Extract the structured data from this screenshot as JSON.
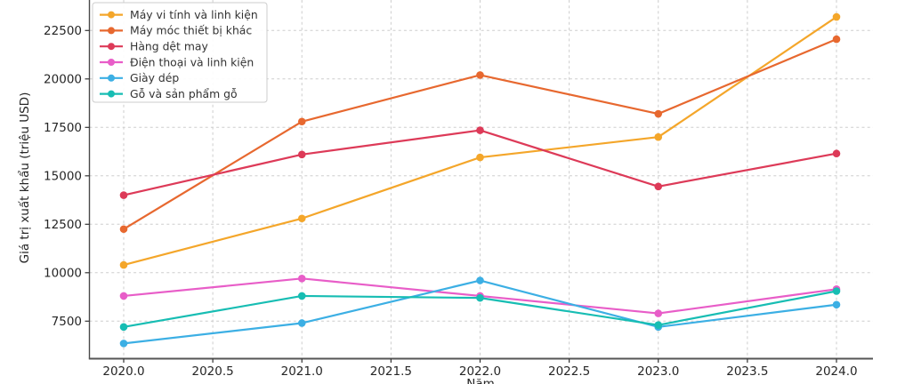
{
  "chart_data": {
    "type": "line",
    "title": "",
    "xlabel": "Năm",
    "ylabel": "Giá trị xuất khẩu (triệu USD)",
    "x": [
      2020,
      2021,
      2022,
      2023,
      2024
    ],
    "x_ticks": [
      2020.0,
      2020.5,
      2021.0,
      2021.5,
      2022.0,
      2022.5,
      2023.0,
      2023.5,
      2024.0
    ],
    "x_tick_labels": [
      "2020.0",
      "2020.5",
      "2021.0",
      "2021.5",
      "2022.0",
      "2022.5",
      "2023.0",
      "2023.5",
      "2024.0"
    ],
    "y_ticks": [
      7500,
      10000,
      12500,
      15000,
      17500,
      20000,
      22500
    ],
    "y_tick_labels": [
      "7500",
      "10000",
      "12500",
      "15000",
      "17500",
      "20000",
      "22500"
    ],
    "xlim": [
      2019.81,
      2024.2
    ],
    "ylim": [
      5550,
      24075
    ],
    "grid": true,
    "grid_style": "dashed",
    "legend_position": "upper left",
    "series": [
      {
        "name": "Máy vi tính và linh kiện",
        "color": "#f4a62a",
        "values": [
          10400,
          12800,
          15950,
          17000,
          23200
        ]
      },
      {
        "name": "Máy móc thiết bị khác",
        "color": "#e7682f",
        "values": [
          12250,
          17800,
          20200,
          18200,
          22050
        ]
      },
      {
        "name": "Hàng dệt may",
        "color": "#dd3a58",
        "values": [
          14000,
          16100,
          17350,
          14450,
          16150
        ]
      },
      {
        "name": "Điện thoại và linh kiện",
        "color": "#e85dc8",
        "values": [
          8800,
          9700,
          8800,
          7900,
          9150
        ]
      },
      {
        "name": "Giày dép",
        "color": "#3cafe4",
        "values": [
          6350,
          7400,
          9600,
          7200,
          8350
        ]
      },
      {
        "name": "Gỗ và sản phẩm gỗ",
        "color": "#17bdb3",
        "values": [
          7200,
          8800,
          8700,
          7300,
          9050
        ]
      }
    ],
    "colors": {
      "grid": "#cdcdcd",
      "spine": "#555555",
      "tick_text": "#262626",
      "legend_border": "#cccccc",
      "legend_text": "#333333"
    }
  }
}
